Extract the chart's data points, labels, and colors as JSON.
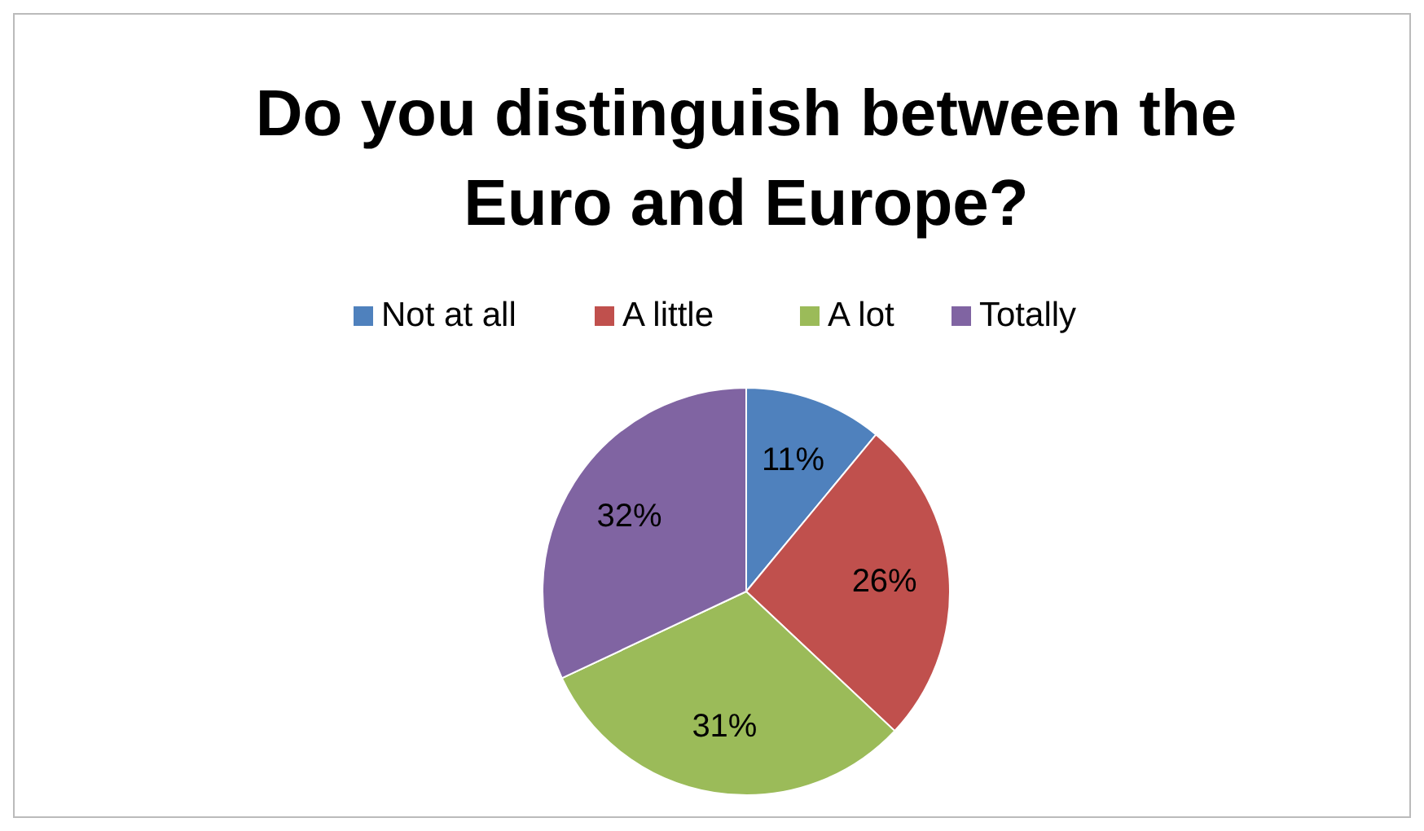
{
  "chart_data": {
    "type": "pie",
    "title": "Do you distinguish between the Euro and Europe?",
    "categories": [
      "Not at all",
      "A little",
      "A lot",
      "Totally"
    ],
    "values": [
      11,
      26,
      31,
      32
    ],
    "colors": [
      "#4f81bd",
      "#c0504d",
      "#9bbb59",
      "#8064a2"
    ],
    "value_labels": [
      "11%",
      "26%",
      "31%",
      "32%"
    ],
    "legend": "top"
  }
}
